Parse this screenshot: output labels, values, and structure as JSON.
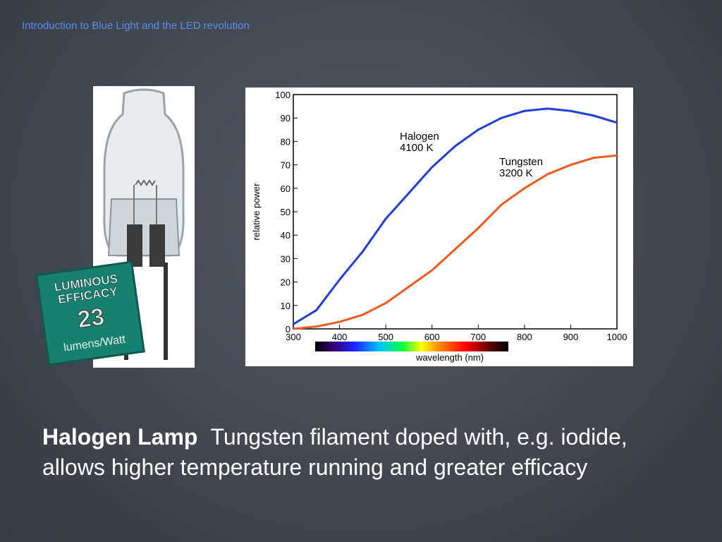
{
  "header": {
    "title": "Introduction to Blue Light and the LED revolution"
  },
  "badge": {
    "line1": "LUMINOUS",
    "line2": "EFFICACY",
    "value": "23",
    "unit": "lumens/Watt"
  },
  "chart_data": {
    "type": "line",
    "xlabel": "wavelength (nm)",
    "ylabel": "relative power",
    "x": [
      300,
      350,
      400,
      450,
      500,
      550,
      600,
      650,
      700,
      750,
      800,
      850,
      900,
      950,
      1000
    ],
    "series": [
      {
        "name": "Halogen",
        "temperature": "4100 K",
        "color": "#1f3fd8",
        "values": [
          2,
          8,
          21,
          33,
          47,
          58,
          69,
          78,
          85,
          90,
          93,
          94,
          93,
          91,
          88
        ]
      },
      {
        "name": "Tungsten",
        "temperature": "3200 K",
        "color": "#f05a1e",
        "values": [
          0,
          1,
          3,
          6,
          11,
          18,
          25,
          34,
          43,
          53,
          60,
          66,
          70,
          73,
          74
        ]
      }
    ],
    "xlim": [
      300,
      1000
    ],
    "ylim": [
      0,
      100
    ],
    "xticks": [
      300,
      400,
      500,
      600,
      700,
      800,
      900,
      1000
    ],
    "yticks": [
      0,
      10,
      20,
      30,
      40,
      50,
      60,
      70,
      80,
      90,
      100
    ]
  },
  "caption": {
    "bold": "Halogen Lamp",
    "text": "Tungsten filament doped with, e.g. iodide, allows higher temperature running and greater efficacy"
  }
}
